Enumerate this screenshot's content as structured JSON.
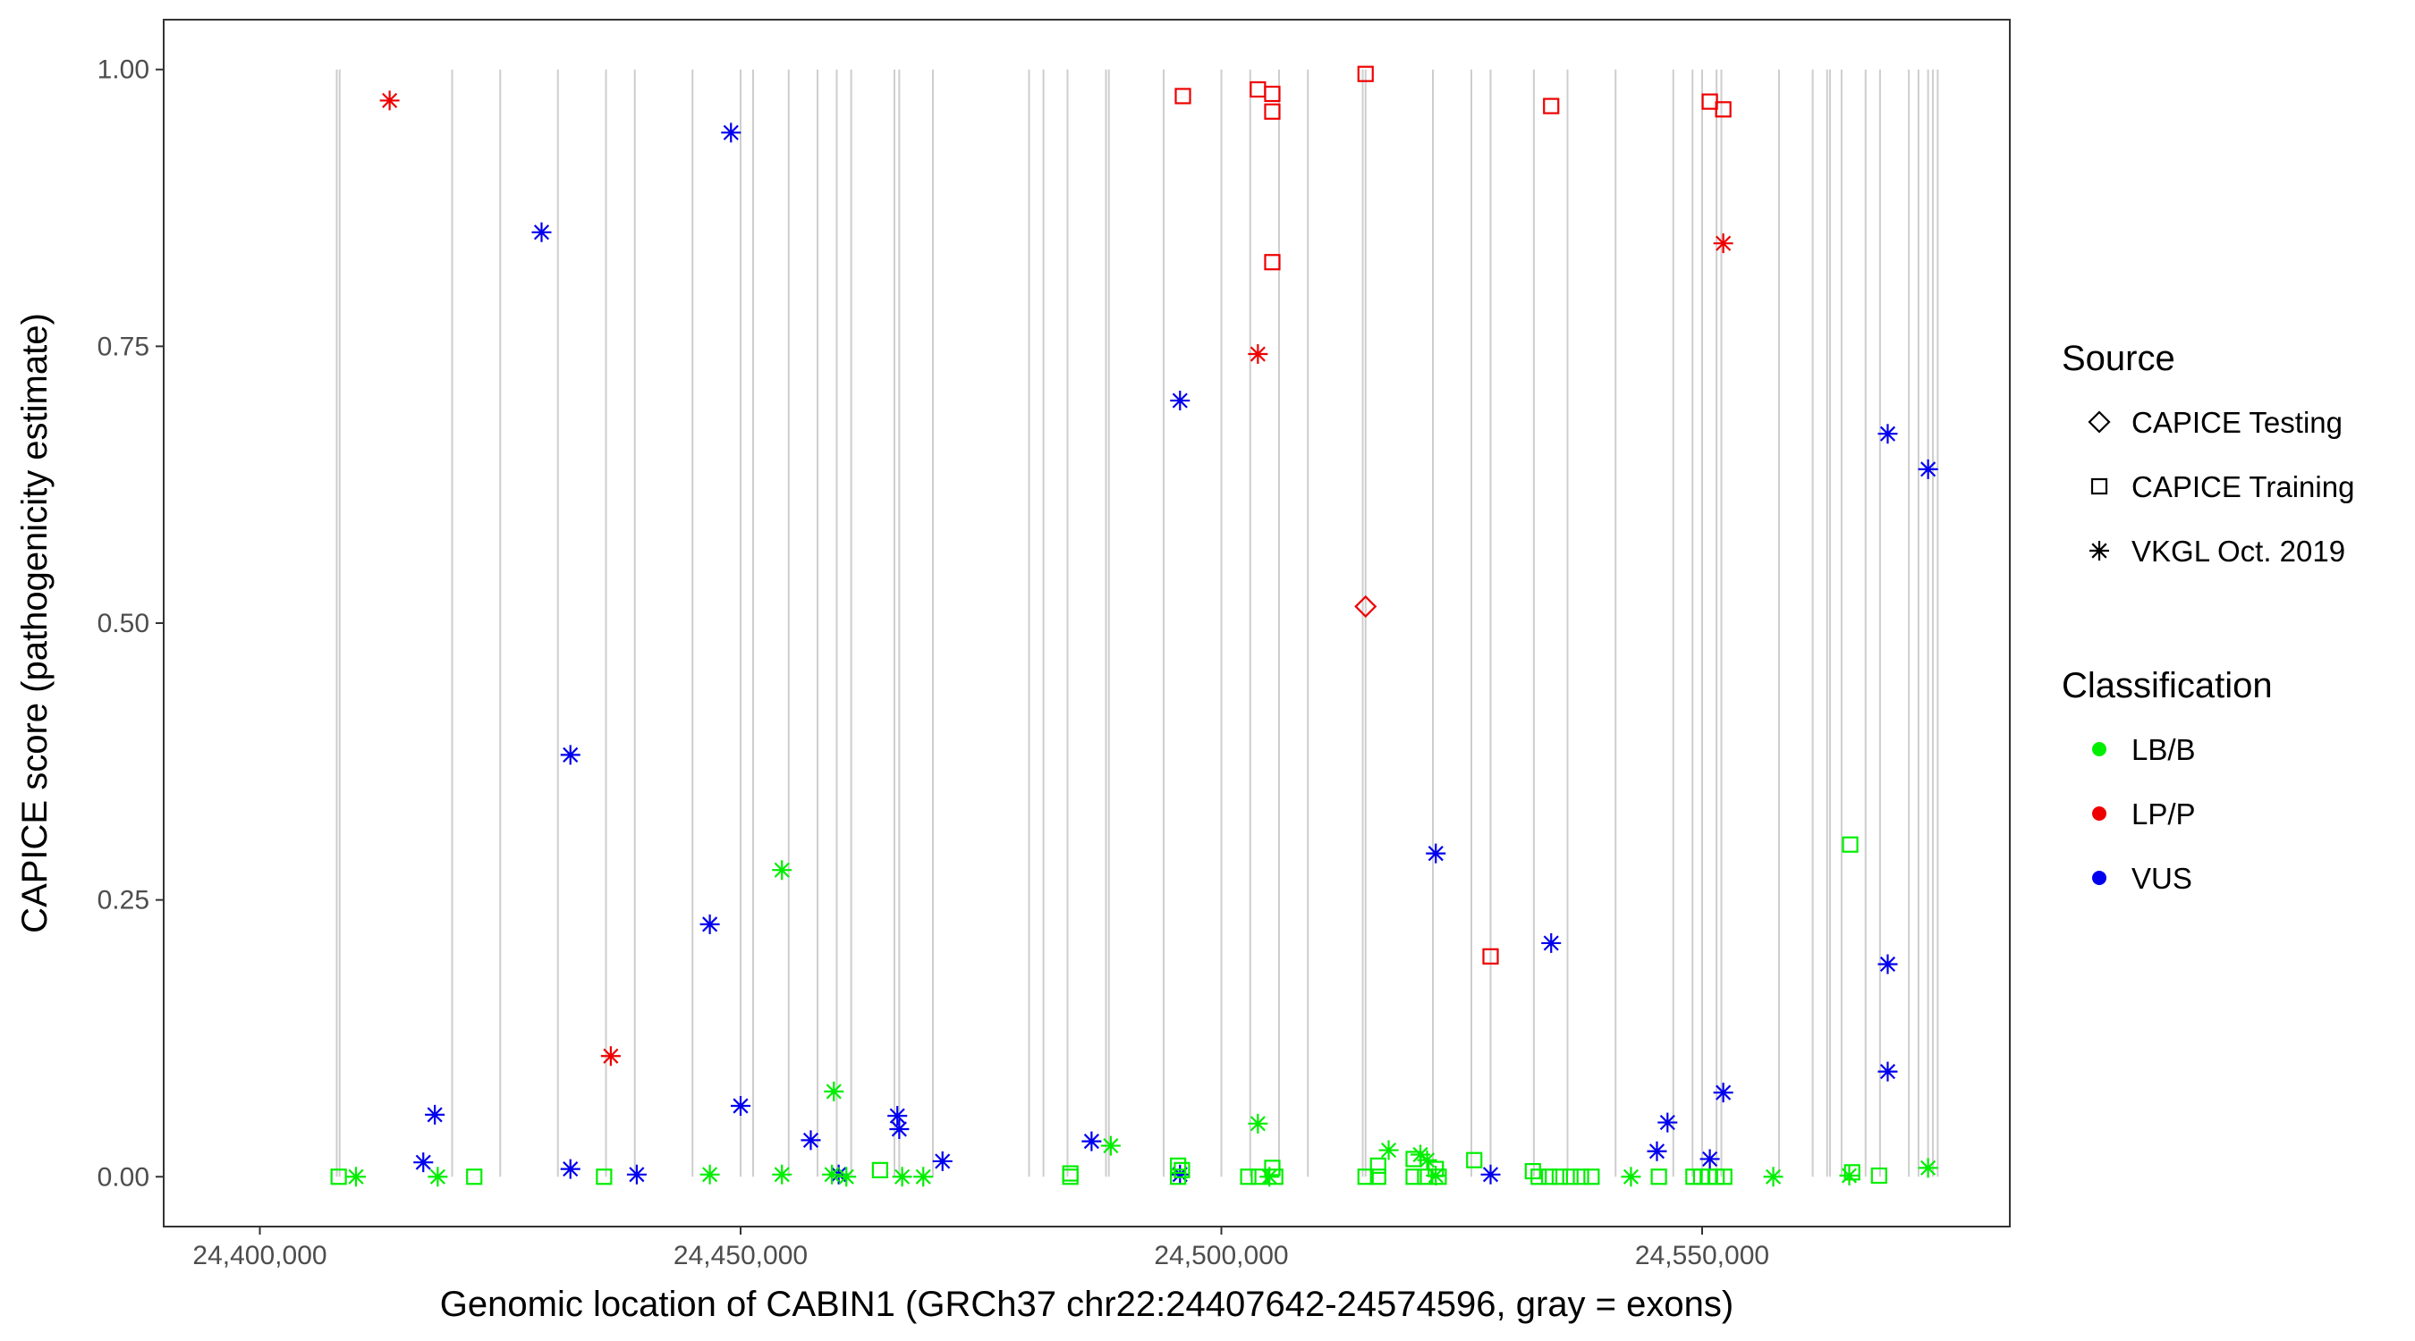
{
  "chart_data": {
    "type": "scatter",
    "xlabel": "Genomic location of CABIN1 (GRCh37 chr22:24407642-24574596, gray = exons)",
    "ylabel": "CAPICE score (pathogenicity estimate)",
    "xlim": [
      24390000,
      24582000
    ],
    "ylim": [
      -0.045,
      1.045
    ],
    "x_ticks": [
      24400000,
      24450000,
      24500000,
      24550000
    ],
    "x_tick_labels": [
      "24,400,000",
      "24,450,000",
      "24,500,000",
      "24,550,000"
    ],
    "y_ticks": [
      0,
      0.25,
      0.5,
      0.75,
      1.0
    ],
    "y_tick_labels": [
      "0.00",
      "0.25",
      "0.50",
      "0.75",
      "1.00"
    ],
    "grid": false,
    "exons": [
      24408000,
      24408300,
      24420000,
      24425000,
      24431000,
      24436000,
      24439000,
      24445000,
      24450000,
      24451300,
      24455000,
      24458000,
      24460000,
      24461500,
      24466000,
      24466500,
      24470000,
      24480000,
      24481500,
      24484000,
      24488000,
      24488300,
      24494000,
      24500000,
      24503000,
      24506000,
      24509000,
      24514700,
      24515000,
      24522000,
      24526000,
      24528000,
      24532500,
      24536000,
      24541000,
      24547000,
      24549000,
      24550000,
      24551500,
      24552000,
      24558000,
      24561500,
      24563000,
      24563300,
      24564500,
      24567000,
      24568500,
      24571500,
      24572500,
      24573500,
      24574000,
      24574500
    ],
    "legend": {
      "source_title": "Source",
      "sources": [
        "CAPICE Testing",
        "CAPICE Training",
        "VKGL Oct. 2019"
      ],
      "classification_title": "Classification",
      "classifications": [
        "LB/B",
        "LP/P",
        "VUS"
      ]
    },
    "colors": {
      "LB/B": "#00ee00",
      "LP/P": "#ee0000",
      "VUS": "#0000ee"
    },
    "points": [
      {
        "x": 24413500,
        "y": 0.972,
        "source": "VKGL Oct. 2019",
        "class": "LP/P"
      },
      {
        "x": 24436500,
        "y": 0.109,
        "source": "VKGL Oct. 2019",
        "class": "LP/P"
      },
      {
        "x": 24503800,
        "y": 0.743,
        "source": "VKGL Oct. 2019",
        "class": "LP/P"
      },
      {
        "x": 24552200,
        "y": 0.843,
        "source": "VKGL Oct. 2019",
        "class": "LP/P"
      },
      {
        "x": 24496000,
        "y": 0.976,
        "source": "CAPICE Training",
        "class": "LP/P"
      },
      {
        "x": 24503800,
        "y": 0.982,
        "source": "CAPICE Training",
        "class": "LP/P"
      },
      {
        "x": 24505300,
        "y": 0.978,
        "source": "CAPICE Training",
        "class": "LP/P"
      },
      {
        "x": 24505300,
        "y": 0.962,
        "source": "CAPICE Training",
        "class": "LP/P"
      },
      {
        "x": 24505300,
        "y": 0.826,
        "source": "CAPICE Training",
        "class": "LP/P"
      },
      {
        "x": 24515000,
        "y": 0.996,
        "source": "CAPICE Training",
        "class": "LP/P"
      },
      {
        "x": 24528000,
        "y": 0.199,
        "source": "CAPICE Training",
        "class": "LP/P"
      },
      {
        "x": 24534300,
        "y": 0.967,
        "source": "CAPICE Training",
        "class": "LP/P"
      },
      {
        "x": 24550800,
        "y": 0.971,
        "source": "CAPICE Training",
        "class": "LP/P"
      },
      {
        "x": 24552200,
        "y": 0.964,
        "source": "CAPICE Training",
        "class": "LP/P"
      },
      {
        "x": 24515000,
        "y": 0.515,
        "source": "CAPICE Testing",
        "class": "LP/P"
      },
      {
        "x": 24417000,
        "y": 0.013,
        "source": "VKGL Oct. 2019",
        "class": "VUS"
      },
      {
        "x": 24418200,
        "y": 0.056,
        "source": "VKGL Oct. 2019",
        "class": "VUS"
      },
      {
        "x": 24429300,
        "y": 0.853,
        "source": "VKGL Oct. 2019",
        "class": "VUS"
      },
      {
        "x": 24432300,
        "y": 0.007,
        "source": "VKGL Oct. 2019",
        "class": "VUS"
      },
      {
        "x": 24432300,
        "y": 0.381,
        "source": "VKGL Oct. 2019",
        "class": "VUS"
      },
      {
        "x": 24439200,
        "y": 0.002,
        "source": "VKGL Oct. 2019",
        "class": "VUS"
      },
      {
        "x": 24446800,
        "y": 0.228,
        "source": "VKGL Oct. 2019",
        "class": "VUS"
      },
      {
        "x": 24449000,
        "y": 0.943,
        "source": "VKGL Oct. 2019",
        "class": "VUS"
      },
      {
        "x": 24450000,
        "y": 0.064,
        "source": "VKGL Oct. 2019",
        "class": "VUS"
      },
      {
        "x": 24457300,
        "y": 0.033,
        "source": "VKGL Oct. 2019",
        "class": "VUS"
      },
      {
        "x": 24460200,
        "y": 0.002,
        "source": "VKGL Oct. 2019",
        "class": "VUS"
      },
      {
        "x": 24466300,
        "y": 0.055,
        "source": "VKGL Oct. 2019",
        "class": "VUS"
      },
      {
        "x": 24466500,
        "y": 0.043,
        "source": "VKGL Oct. 2019",
        "class": "VUS"
      },
      {
        "x": 24471000,
        "y": 0.014,
        "source": "VKGL Oct. 2019",
        "class": "VUS"
      },
      {
        "x": 24486500,
        "y": 0.032,
        "source": "VKGL Oct. 2019",
        "class": "VUS"
      },
      {
        "x": 24495700,
        "y": 0.701,
        "source": "VKGL Oct. 2019",
        "class": "VUS"
      },
      {
        "x": 24495700,
        "y": 0.002,
        "source": "VKGL Oct. 2019",
        "class": "VUS"
      },
      {
        "x": 24522300,
        "y": 0.292,
        "source": "VKGL Oct. 2019",
        "class": "VUS"
      },
      {
        "x": 24528000,
        "y": 0.002,
        "source": "VKGL Oct. 2019",
        "class": "VUS"
      },
      {
        "x": 24534300,
        "y": 0.211,
        "source": "VKGL Oct. 2019",
        "class": "VUS"
      },
      {
        "x": 24545300,
        "y": 0.023,
        "source": "VKGL Oct. 2019",
        "class": "VUS"
      },
      {
        "x": 24546400,
        "y": 0.049,
        "source": "VKGL Oct. 2019",
        "class": "VUS"
      },
      {
        "x": 24550800,
        "y": 0.016,
        "source": "VKGL Oct. 2019",
        "class": "VUS"
      },
      {
        "x": 24552200,
        "y": 0.076,
        "source": "VKGL Oct. 2019",
        "class": "VUS"
      },
      {
        "x": 24569300,
        "y": 0.671,
        "source": "VKGL Oct. 2019",
        "class": "VUS"
      },
      {
        "x": 24569300,
        "y": 0.192,
        "source": "VKGL Oct. 2019",
        "class": "VUS"
      },
      {
        "x": 24569300,
        "y": 0.095,
        "source": "VKGL Oct. 2019",
        "class": "VUS"
      },
      {
        "x": 24573500,
        "y": 0.639,
        "source": "VKGL Oct. 2019",
        "class": "VUS"
      },
      {
        "x": 24410000,
        "y": 0.0,
        "source": "VKGL Oct. 2019",
        "class": "LB/B"
      },
      {
        "x": 24418500,
        "y": 0.0,
        "source": "VKGL Oct. 2019",
        "class": "LB/B"
      },
      {
        "x": 24446800,
        "y": 0.002,
        "source": "VKGL Oct. 2019",
        "class": "LB/B"
      },
      {
        "x": 24454300,
        "y": 0.277,
        "source": "VKGL Oct. 2019",
        "class": "LB/B"
      },
      {
        "x": 24454300,
        "y": 0.002,
        "source": "VKGL Oct. 2019",
        "class": "LB/B"
      },
      {
        "x": 24459700,
        "y": 0.077,
        "source": "VKGL Oct. 2019",
        "class": "LB/B"
      },
      {
        "x": 24459500,
        "y": 0.002,
        "source": "VKGL Oct. 2019",
        "class": "LB/B"
      },
      {
        "x": 24461000,
        "y": 0.0,
        "source": "VKGL Oct. 2019",
        "class": "LB/B"
      },
      {
        "x": 24466800,
        "y": 0.0,
        "source": "VKGL Oct. 2019",
        "class": "LB/B"
      },
      {
        "x": 24469000,
        "y": 0.0,
        "source": "VKGL Oct. 2019",
        "class": "LB/B"
      },
      {
        "x": 24488500,
        "y": 0.028,
        "source": "VKGL Oct. 2019",
        "class": "LB/B"
      },
      {
        "x": 24503800,
        "y": 0.048,
        "source": "VKGL Oct. 2019",
        "class": "LB/B"
      },
      {
        "x": 24505000,
        "y": 0.0,
        "source": "VKGL Oct. 2019",
        "class": "LB/B"
      },
      {
        "x": 24517400,
        "y": 0.024,
        "source": "VKGL Oct. 2019",
        "class": "LB/B"
      },
      {
        "x": 24520700,
        "y": 0.02,
        "source": "VKGL Oct. 2019",
        "class": "LB/B"
      },
      {
        "x": 24521400,
        "y": 0.015,
        "source": "VKGL Oct. 2019",
        "class": "LB/B"
      },
      {
        "x": 24522300,
        "y": 0.001,
        "source": "VKGL Oct. 2019",
        "class": "LB/B"
      },
      {
        "x": 24542600,
        "y": 0.0,
        "source": "VKGL Oct. 2019",
        "class": "LB/B"
      },
      {
        "x": 24557400,
        "y": 0.0,
        "source": "VKGL Oct. 2019",
        "class": "LB/B"
      },
      {
        "x": 24565300,
        "y": 0.001,
        "source": "VKGL Oct. 2019",
        "class": "LB/B"
      },
      {
        "x": 24573500,
        "y": 0.008,
        "source": "VKGL Oct. 2019",
        "class": "LB/B"
      },
      {
        "x": 24408200,
        "y": 0.0,
        "source": "CAPICE Training",
        "class": "LB/B"
      },
      {
        "x": 24422300,
        "y": 0.0,
        "source": "CAPICE Training",
        "class": "LB/B"
      },
      {
        "x": 24435800,
        "y": 0.0,
        "source": "CAPICE Training",
        "class": "LB/B"
      },
      {
        "x": 24464500,
        "y": 0.006,
        "source": "CAPICE Training",
        "class": "LB/B"
      },
      {
        "x": 24484300,
        "y": 0.003,
        "source": "CAPICE Training",
        "class": "LB/B"
      },
      {
        "x": 24484300,
        "y": 0.0,
        "source": "CAPICE Training",
        "class": "LB/B"
      },
      {
        "x": 24495500,
        "y": 0.01,
        "source": "CAPICE Training",
        "class": "LB/B"
      },
      {
        "x": 24495900,
        "y": 0.006,
        "source": "CAPICE Training",
        "class": "LB/B"
      },
      {
        "x": 24495500,
        "y": 0.0,
        "source": "CAPICE Training",
        "class": "LB/B"
      },
      {
        "x": 24502800,
        "y": 0.0,
        "source": "CAPICE Training",
        "class": "LB/B"
      },
      {
        "x": 24503900,
        "y": 0.0,
        "source": "CAPICE Training",
        "class": "LB/B"
      },
      {
        "x": 24505300,
        "y": 0.008,
        "source": "CAPICE Training",
        "class": "LB/B"
      },
      {
        "x": 24505600,
        "y": 0.0,
        "source": "CAPICE Training",
        "class": "LB/B"
      },
      {
        "x": 24515000,
        "y": 0.0,
        "source": "CAPICE Training",
        "class": "LB/B"
      },
      {
        "x": 24516300,
        "y": 0.01,
        "source": "CAPICE Training",
        "class": "LB/B"
      },
      {
        "x": 24516300,
        "y": 0.0,
        "source": "CAPICE Training",
        "class": "LB/B"
      },
      {
        "x": 24520000,
        "y": 0.016,
        "source": "CAPICE Training",
        "class": "LB/B"
      },
      {
        "x": 24520000,
        "y": 0.0,
        "source": "CAPICE Training",
        "class": "LB/B"
      },
      {
        "x": 24521200,
        "y": 0.0,
        "source": "CAPICE Training",
        "class": "LB/B"
      },
      {
        "x": 24522300,
        "y": 0.007,
        "source": "CAPICE Training",
        "class": "LB/B"
      },
      {
        "x": 24522600,
        "y": 0.0,
        "source": "CAPICE Training",
        "class": "LB/B"
      },
      {
        "x": 24526300,
        "y": 0.015,
        "source": "CAPICE Training",
        "class": "LB/B"
      },
      {
        "x": 24532400,
        "y": 0.005,
        "source": "CAPICE Training",
        "class": "LB/B"
      },
      {
        "x": 24533000,
        "y": 0.0,
        "source": "CAPICE Training",
        "class": "LB/B"
      },
      {
        "x": 24534100,
        "y": 0.0,
        "source": "CAPICE Training",
        "class": "LB/B"
      },
      {
        "x": 24535200,
        "y": 0.0,
        "source": "CAPICE Training",
        "class": "LB/B"
      },
      {
        "x": 24536300,
        "y": 0.0,
        "source": "CAPICE Training",
        "class": "LB/B"
      },
      {
        "x": 24537400,
        "y": 0.0,
        "source": "CAPICE Training",
        "class": "LB/B"
      },
      {
        "x": 24538500,
        "y": 0.0,
        "source": "CAPICE Training",
        "class": "LB/B"
      },
      {
        "x": 24545500,
        "y": 0.0,
        "source": "CAPICE Training",
        "class": "LB/B"
      },
      {
        "x": 24549100,
        "y": 0.0,
        "source": "CAPICE Training",
        "class": "LB/B"
      },
      {
        "x": 24549900,
        "y": 0.0,
        "source": "CAPICE Training",
        "class": "LB/B"
      },
      {
        "x": 24550700,
        "y": 0.0,
        "source": "CAPICE Training",
        "class": "LB/B"
      },
      {
        "x": 24551500,
        "y": 0.0,
        "source": "CAPICE Training",
        "class": "LB/B"
      },
      {
        "x": 24552300,
        "y": 0.0,
        "source": "CAPICE Training",
        "class": "LB/B"
      },
      {
        "x": 24565400,
        "y": 0.3,
        "source": "CAPICE Training",
        "class": "LB/B"
      },
      {
        "x": 24565600,
        "y": 0.004,
        "source": "CAPICE Training",
        "class": "LB/B"
      },
      {
        "x": 24568400,
        "y": 0.001,
        "source": "CAPICE Training",
        "class": "LB/B"
      }
    ]
  }
}
